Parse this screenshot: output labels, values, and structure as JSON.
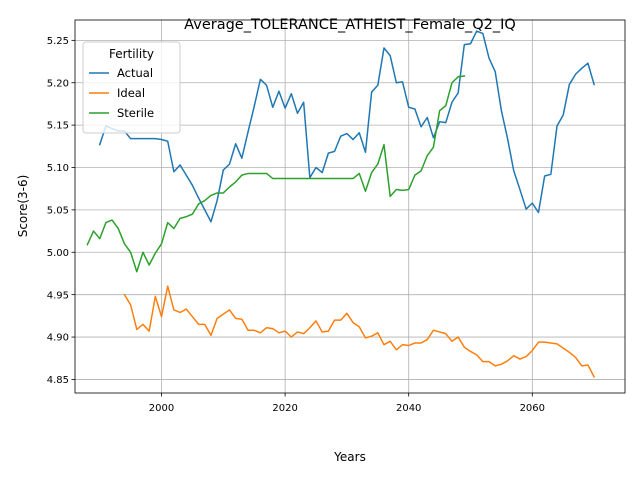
{
  "chart_data": {
    "type": "line",
    "title": "Average_TOLERANCE_ATHEIST_Female_Q2_IQ",
    "xlabel": "Years",
    "ylabel": "Score(3-6)",
    "xlim": [
      1986,
      2075
    ],
    "ylim": [
      4.834,
      5.274
    ],
    "xticks": [
      2000,
      2020,
      2040,
      2060
    ],
    "yticks": [
      4.85,
      4.9,
      4.95,
      5.0,
      5.05,
      5.1,
      5.15,
      5.2,
      5.25
    ],
    "xtick_labels": [
      "2000",
      "2020",
      "2040",
      "2060"
    ],
    "ytick_labels": [
      "4.85",
      "4.90",
      "4.95",
      "5.00",
      "5.05",
      "5.10",
      "5.15",
      "5.20",
      "5.25"
    ],
    "grid": true,
    "legend": {
      "title": "Fertility",
      "position": "top-left"
    },
    "series": [
      {
        "name": "Actual",
        "color": "#1f77b4",
        "x": [
          1990,
          1991,
          1992,
          1993,
          1994,
          1995,
          1996,
          1997,
          1998,
          1999,
          2000,
          2001,
          2002,
          2003,
          2004,
          2005,
          2006,
          2007,
          2008,
          2009,
          2010,
          2011,
          2012,
          2013,
          2014,
          2015,
          2016,
          2017,
          2018,
          2019,
          2020,
          2021,
          2022,
          2023,
          2024,
          2025,
          2026,
          2027,
          2028,
          2029,
          2030,
          2031,
          2032,
          2033,
          2034,
          2035,
          2036,
          2037,
          2038,
          2039,
          2040,
          2041,
          2042,
          2043,
          2044,
          2045,
          2046,
          2047,
          2048,
          2049,
          2050,
          2051,
          2052,
          2053,
          2054,
          2055,
          2056,
          2057,
          2058,
          2059,
          2060,
          2061,
          2062,
          2063,
          2064,
          2065,
          2066,
          2067,
          2068,
          2069,
          2070
        ],
        "y": [
          5.127,
          5.149,
          5.146,
          5.143,
          5.143,
          5.134,
          5.134,
          5.134,
          5.134,
          5.134,
          5.133,
          5.131,
          5.095,
          5.103,
          5.091,
          5.079,
          5.064,
          5.05,
          5.036,
          5.061,
          5.097,
          5.104,
          5.128,
          5.111,
          5.142,
          5.172,
          5.204,
          5.197,
          5.171,
          5.19,
          5.17,
          5.187,
          5.164,
          5.177,
          5.088,
          5.1,
          5.094,
          5.117,
          5.119,
          5.137,
          5.14,
          5.133,
          5.141,
          5.118,
          5.189,
          5.197,
          5.241,
          5.232,
          5.2,
          5.201,
          5.171,
          5.169,
          5.148,
          5.159,
          5.135,
          5.154,
          5.153,
          5.177,
          5.188,
          5.245,
          5.246,
          5.261,
          5.258,
          5.229,
          5.213,
          5.167,
          5.134,
          5.096,
          5.074,
          5.051,
          5.058,
          5.047,
          5.09,
          5.092,
          5.149,
          5.162,
          5.198,
          5.21,
          5.217,
          5.223,
          5.198
        ]
      },
      {
        "name": "Ideal",
        "color": "#ff7f0e",
        "x": [
          1994,
          1995,
          1996,
          1997,
          1998,
          1999,
          2000,
          2001,
          2002,
          2003,
          2004,
          2005,
          2006,
          2007,
          2008,
          2009,
          2010,
          2011,
          2012,
          2013,
          2014,
          2015,
          2016,
          2017,
          2018,
          2019,
          2020,
          2021,
          2022,
          2023,
          2024,
          2025,
          2026,
          2027,
          2028,
          2029,
          2030,
          2031,
          2032,
          2033,
          2034,
          2035,
          2036,
          2037,
          2038,
          2039,
          2040,
          2041,
          2042,
          2043,
          2044,
          2045,
          2046,
          2047,
          2048,
          2049,
          2050,
          2051,
          2052,
          2053,
          2054,
          2055,
          2056,
          2057,
          2058,
          2059,
          2060,
          2061,
          2062,
          2063,
          2064,
          2065,
          2066,
          2067,
          2068,
          2069,
          2070
        ],
        "y": [
          4.95,
          4.938,
          4.909,
          4.915,
          4.907,
          4.948,
          4.924,
          4.96,
          4.932,
          4.929,
          4.933,
          4.924,
          4.915,
          4.915,
          4.902,
          4.922,
          4.927,
          4.932,
          4.922,
          4.921,
          4.908,
          4.908,
          4.905,
          4.911,
          4.91,
          4.905,
          4.907,
          4.9,
          4.906,
          4.904,
          4.911,
          4.919,
          4.906,
          4.907,
          4.92,
          4.92,
          4.928,
          4.917,
          4.912,
          4.899,
          4.901,
          4.905,
          4.891,
          4.895,
          4.885,
          4.891,
          4.89,
          4.893,
          4.893,
          4.897,
          4.908,
          4.906,
          4.904,
          4.895,
          4.9,
          4.888,
          4.883,
          4.879,
          4.871,
          4.871,
          4.866,
          4.868,
          4.872,
          4.878,
          4.874,
          4.877,
          4.884,
          4.894,
          4.894,
          4.893,
          4.892,
          4.887,
          4.882,
          4.876,
          4.866,
          4.867,
          4.853
        ]
      },
      {
        "name": "Sterile",
        "color": "#2ca02c",
        "x": [
          1988,
          1989,
          1990,
          1991,
          1992,
          1993,
          1994,
          1995,
          1996,
          1997,
          1998,
          1999,
          2000,
          2001,
          2002,
          2003,
          2004,
          2005,
          2006,
          2007,
          2008,
          2009,
          2010,
          2011,
          2012,
          2013,
          2014,
          2015,
          2016,
          2017,
          2018,
          2019,
          2020,
          2021,
          2022,
          2023,
          2024,
          2025,
          2026,
          2027,
          2028,
          2029,
          2030,
          2031,
          2032,
          2033,
          2034,
          2035,
          2036,
          2037,
          2038,
          2039,
          2040,
          2041,
          2042,
          2043,
          2044,
          2045,
          2046,
          2047,
          2048,
          2049
        ],
        "y": [
          5.009,
          5.025,
          5.016,
          5.035,
          5.038,
          5.028,
          5.01,
          5.0,
          4.977,
          5.0,
          4.985,
          4.999,
          5.01,
          5.035,
          5.028,
          5.04,
          5.042,
          5.045,
          5.057,
          5.061,
          5.067,
          5.07,
          5.07,
          5.077,
          5.083,
          5.091,
          5.093,
          5.093,
          5.093,
          5.093,
          5.087,
          5.087,
          5.087,
          5.087,
          5.087,
          5.087,
          5.087,
          5.087,
          5.087,
          5.087,
          5.087,
          5.087,
          5.087,
          5.087,
          5.093,
          5.072,
          5.094,
          5.104,
          5.127,
          5.066,
          5.074,
          5.073,
          5.074,
          5.091,
          5.096,
          5.114,
          5.124,
          5.167,
          5.173,
          5.2,
          5.207,
          5.208
        ]
      }
    ]
  }
}
